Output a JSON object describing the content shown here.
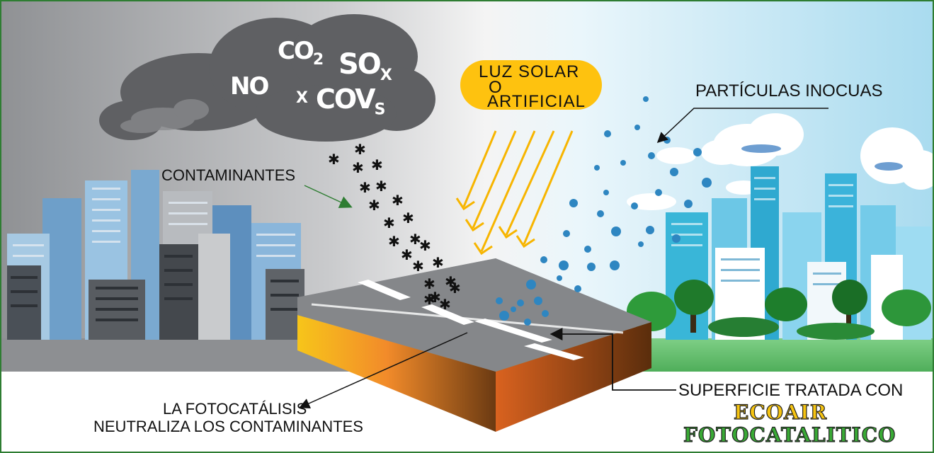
{
  "pollutants": {
    "no": "NO",
    "co": "CO",
    "co_sub": "2",
    "so": "SO",
    "so_sub": "X",
    "x": "X",
    "cov": "COV",
    "cov_sub": "S"
  },
  "light_label": {
    "line1": "LUZ   SOLAR",
    "line2": "O",
    "line3": "ARTIFICIAL"
  },
  "labels": {
    "contaminantes": "CONTAMINANTES",
    "particulas": "PARTÍCULAS INOCUAS",
    "fotocatalisis_line1": "LA FOTOCATÁLISIS",
    "fotocatalisis_line2": "NEUTRALIZA LOS CONTAMINANTES",
    "superficie": "SUPERFICIE TRATADA CON"
  },
  "brand": {
    "line1": "ECOAIR",
    "line2": "FOTOCATALITICO"
  },
  "colors": {
    "frame": "#2e7d32",
    "smog_sky": "#a7a9ac",
    "clean_sky": "#bfe3f1",
    "light_pill": "#fec20f",
    "light_rays": "#f7b500",
    "brand_top": "#f6c411",
    "brand_bottom": "#39a935",
    "particles": "#2e86c1",
    "pollutant": "#111111"
  }
}
